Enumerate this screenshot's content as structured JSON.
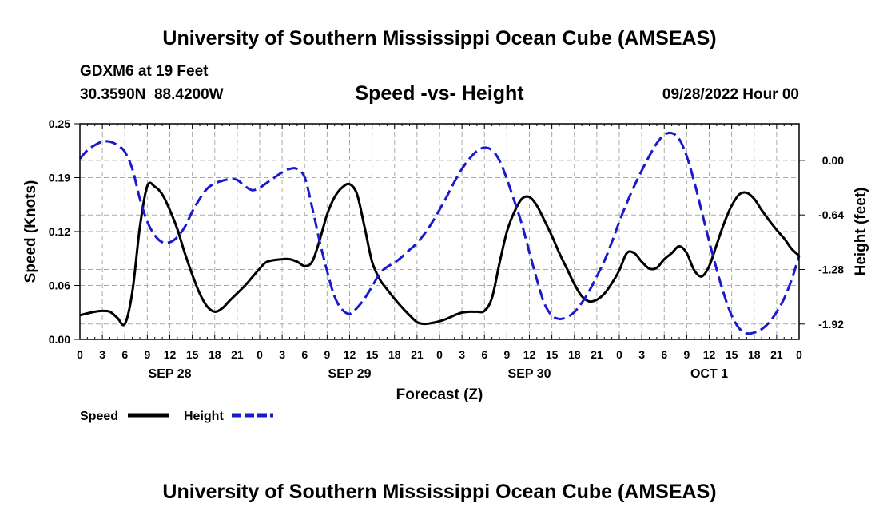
{
  "header": {
    "title": "University of Southern Mississippi Ocean Cube (AMSEAS)",
    "station": "GDXM6 at 19 Feet",
    "coords": "30.3590N  88.4200W",
    "date": "09/28/2022 Hour 00",
    "footer_title": "University of Southern Mississippi Ocean Cube (AMSEAS)"
  },
  "legend": {
    "speed_label": "Speed",
    "height_label": "Height"
  },
  "colors": {
    "speed": "#000000",
    "height": "#1a1acc",
    "grid": "#aaaaaa"
  },
  "chart_data": {
    "type": "line",
    "title": "Speed -vs- Height",
    "xlabel": "Forecast (Z)",
    "ylabel": "Speed (Knots)",
    "y2label": "Height (feet)",
    "xlim": [
      0,
      96
    ],
    "ylim": [
      0,
      0.25
    ],
    "y2lim": [
      -2.1,
      0.43
    ],
    "yticks": [
      "0.00",
      "0.06",
      "0.12",
      "0.19",
      "0.25"
    ],
    "yticks_values": [
      0,
      0.0625,
      0.125,
      0.1875,
      0.25
    ],
    "y2ticks": [
      "-1.92",
      "-1.28",
      "-0.64",
      "0.00"
    ],
    "y2ticks_values": [
      -1.92,
      -1.28,
      -0.64,
      0.0
    ],
    "xticks": [
      "0",
      "3",
      "6",
      "9",
      "12",
      "15",
      "18",
      "21",
      "0",
      "3",
      "6",
      "9",
      "12",
      "15",
      "18",
      "21",
      "0",
      "3",
      "6",
      "9",
      "12",
      "15",
      "18",
      "21",
      "0",
      "3",
      "6",
      "9",
      "12",
      "15",
      "18",
      "21",
      "0"
    ],
    "xticks_values": [
      0,
      3,
      6,
      9,
      12,
      15,
      18,
      21,
      24,
      27,
      30,
      33,
      36,
      39,
      42,
      45,
      48,
      51,
      54,
      57,
      60,
      63,
      66,
      69,
      72,
      75,
      78,
      81,
      84,
      87,
      90,
      93,
      96
    ],
    "day_labels": [
      "SEP 28",
      "SEP 29",
      "SEP 30",
      "OCT 1"
    ],
    "day_label_positions": [
      12,
      36,
      60,
      84
    ],
    "series": [
      {
        "name": "Speed",
        "axis": "left",
        "x": [
          0,
          2,
          3,
          4,
          5,
          6,
          7,
          8,
          9,
          10,
          11,
          12,
          13,
          14,
          15,
          16,
          17,
          18,
          19,
          20,
          22,
          23,
          24,
          25,
          27,
          28,
          29,
          30,
          31,
          32,
          33,
          34,
          35,
          36,
          37,
          38,
          39,
          40,
          41,
          42,
          43,
          44,
          45,
          46,
          47,
          48,
          49,
          50,
          51,
          52,
          53,
          54,
          55,
          56,
          57,
          58,
          59,
          60,
          61,
          62,
          63,
          64,
          65,
          66,
          67,
          68,
          69,
          70,
          71,
          72,
          73,
          74,
          75,
          76,
          77,
          78,
          79,
          80,
          81,
          82,
          83,
          84,
          85,
          86,
          87,
          88,
          89,
          90,
          91,
          92,
          93,
          94,
          95,
          96
        ],
        "values": [
          0.028,
          0.032,
          0.033,
          0.032,
          0.025,
          0.018,
          0.055,
          0.13,
          0.178,
          0.177,
          0.168,
          0.15,
          0.128,
          0.1,
          0.075,
          0.053,
          0.038,
          0.032,
          0.036,
          0.045,
          0.062,
          0.072,
          0.082,
          0.09,
          0.093,
          0.093,
          0.09,
          0.085,
          0.09,
          0.115,
          0.145,
          0.165,
          0.176,
          0.18,
          0.168,
          0.13,
          0.09,
          0.07,
          0.058,
          0.047,
          0.037,
          0.028,
          0.02,
          0.018,
          0.019,
          0.021,
          0.024,
          0.028,
          0.031,
          0.032,
          0.032,
          0.033,
          0.048,
          0.088,
          0.125,
          0.148,
          0.163,
          0.165,
          0.155,
          0.138,
          0.12,
          0.1,
          0.082,
          0.064,
          0.05,
          0.044,
          0.046,
          0.053,
          0.065,
          0.08,
          0.1,
          0.1,
          0.09,
          0.082,
          0.083,
          0.093,
          0.1,
          0.108,
          0.1,
          0.08,
          0.073,
          0.085,
          0.11,
          0.135,
          0.155,
          0.168,
          0.17,
          0.163,
          0.15,
          0.138,
          0.127,
          0.117,
          0.105,
          0.097
        ]
      },
      {
        "name": "Height",
        "axis": "right",
        "x": [
          0,
          1,
          2,
          3,
          4,
          5,
          6,
          7,
          8,
          9,
          10,
          11,
          12,
          13,
          14,
          15,
          16,
          17,
          18,
          19,
          20,
          21,
          22,
          23,
          24,
          25,
          26,
          27,
          28,
          29,
          30,
          31,
          32,
          33,
          34,
          35,
          36,
          37,
          38,
          39,
          40,
          41,
          42,
          43,
          44,
          45,
          46,
          47,
          48,
          49,
          50,
          51,
          52,
          53,
          54,
          55,
          56,
          57,
          58,
          59,
          60,
          61,
          62,
          63,
          64,
          65,
          66,
          67,
          68,
          69,
          70,
          71,
          72,
          73,
          74,
          75,
          76,
          77,
          78,
          79,
          80,
          81,
          82,
          83,
          84,
          85,
          86,
          87,
          88,
          89,
          90,
          91,
          92,
          93,
          94,
          95,
          96
        ],
        "values": [
          0.02,
          0.12,
          0.18,
          0.22,
          0.22,
          0.18,
          0.1,
          -0.1,
          -0.45,
          -0.72,
          -0.88,
          -0.96,
          -0.96,
          -0.9,
          -0.78,
          -0.6,
          -0.45,
          -0.33,
          -0.27,
          -0.24,
          -0.22,
          -0.23,
          -0.3,
          -0.35,
          -0.32,
          -0.26,
          -0.2,
          -0.14,
          -0.1,
          -0.1,
          -0.2,
          -0.55,
          -0.95,
          -1.3,
          -1.6,
          -1.75,
          -1.8,
          -1.73,
          -1.62,
          -1.48,
          -1.33,
          -1.25,
          -1.2,
          -1.13,
          -1.05,
          -0.97,
          -0.86,
          -0.73,
          -0.58,
          -0.42,
          -0.25,
          -0.1,
          0.02,
          0.11,
          0.15,
          0.12,
          0.0,
          -0.22,
          -0.48,
          -0.75,
          -1.08,
          -1.4,
          -1.68,
          -1.82,
          -1.86,
          -1.84,
          -1.78,
          -1.67,
          -1.53,
          -1.36,
          -1.18,
          -0.96,
          -0.72,
          -0.5,
          -0.3,
          -0.12,
          0.05,
          0.2,
          0.3,
          0.32,
          0.25,
          0.05,
          -0.25,
          -0.6,
          -0.95,
          -1.28,
          -1.58,
          -1.82,
          -1.97,
          -2.03,
          -2.02,
          -1.98,
          -1.9,
          -1.78,
          -1.62,
          -1.4,
          -1.12
        ]
      }
    ]
  }
}
